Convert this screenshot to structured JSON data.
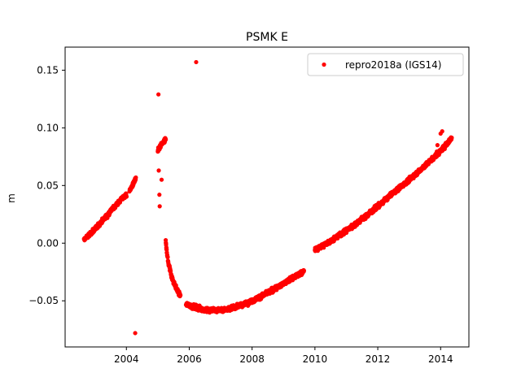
{
  "chart_data": {
    "type": "scatter",
    "title": "PSMK E",
    "xlabel": "",
    "ylabel": "m",
    "xlim": [
      2002.05,
      2014.9
    ],
    "ylim": [
      -0.09,
      0.17
    ],
    "xticks": [
      2004,
      2006,
      2008,
      2010,
      2012,
      2014
    ],
    "yticks": [
      -0.05,
      0.0,
      0.05,
      0.1,
      0.15
    ],
    "ytick_labels": [
      "−0.05",
      "0.00",
      "0.05",
      "0.10",
      "0.15"
    ],
    "grid": false,
    "legend_position": "top-right",
    "series": [
      {
        "name": "repro2018a (IGS14)",
        "color": "#ff0000",
        "marker": "circle",
        "segments": [
          {
            "x": [
              2002.65,
              2003.0,
              2003.5,
              2003.9,
              2004.0
            ],
            "y": [
              0.003,
              0.012,
              0.028,
              0.04,
              0.042
            ]
          },
          {
            "x": [
              2004.1,
              2004.3
            ],
            "y": [
              0.045,
              0.056
            ]
          },
          {
            "x": [
              2005.0,
              2005.1,
              2005.25
            ],
            "y": [
              0.08,
              0.085,
              0.09
            ]
          },
          {
            "x": [
              2005.25,
              2005.32,
              2005.45,
              2005.6,
              2005.72
            ],
            "y": [
              0.002,
              -0.015,
              -0.03,
              -0.04,
              -0.046
            ]
          },
          {
            "x": [
              2005.9,
              2006.5,
              2007.0,
              2007.5,
              2008.0,
              2008.5,
              2009.0,
              2009.5,
              2009.65
            ],
            "y": [
              -0.053,
              -0.058,
              -0.058,
              -0.055,
              -0.05,
              -0.043,
              -0.035,
              -0.027,
              -0.024
            ]
          },
          {
            "x": [
              2010.0,
              2010.5,
              2011.0,
              2011.5,
              2012.0,
              2012.5,
              2013.0,
              2013.5,
              2014.0,
              2014.35
            ],
            "y": [
              -0.006,
              0.002,
              0.011,
              0.021,
              0.032,
              0.044,
              0.055,
              0.067,
              0.08,
              0.091
            ]
          }
        ],
        "outliers": [
          {
            "x": 2004.28,
            "y": -0.078
          },
          {
            "x": 2005.02,
            "y": 0.129
          },
          {
            "x": 2005.03,
            "y": 0.063
          },
          {
            "x": 2005.05,
            "y": 0.042
          },
          {
            "x": 2005.06,
            "y": 0.032
          },
          {
            "x": 2005.12,
            "y": 0.055
          },
          {
            "x": 2006.22,
            "y": 0.157
          },
          {
            "x": 2014.0,
            "y": 0.095
          },
          {
            "x": 2014.05,
            "y": 0.097
          },
          {
            "x": 2013.9,
            "y": 0.085
          }
        ]
      }
    ]
  }
}
